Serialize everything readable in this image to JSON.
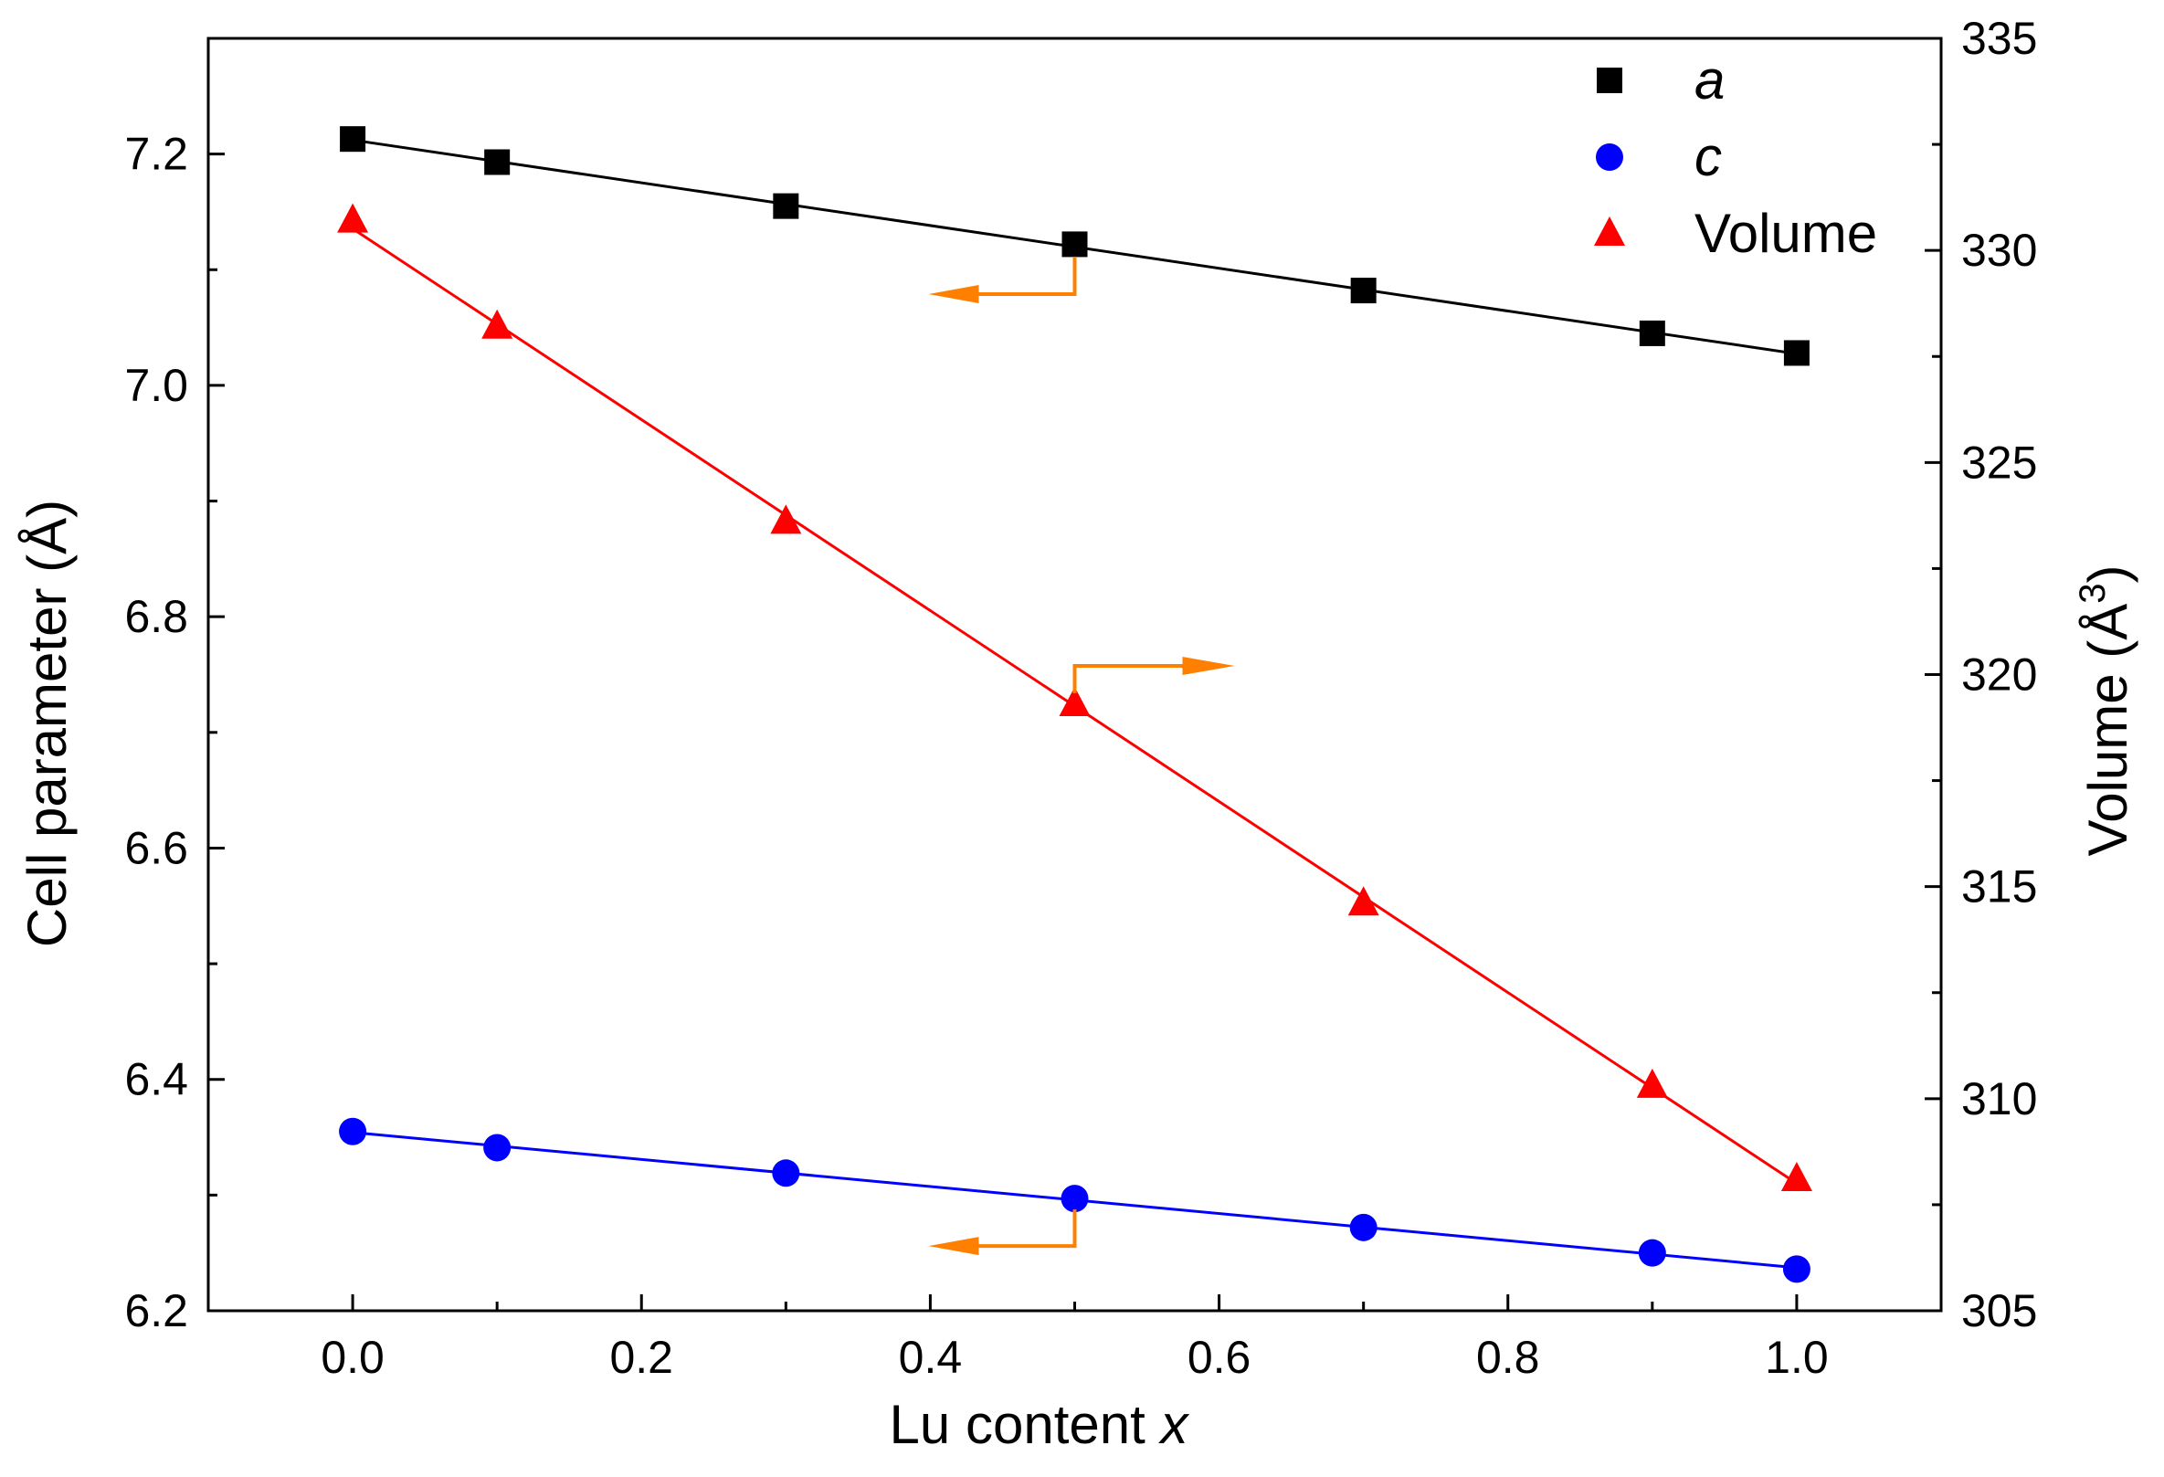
{
  "chart_data": {
    "type": "line+scatter",
    "title": "",
    "x": [
      0.0,
      0.1,
      0.3,
      0.5,
      0.7,
      0.9,
      1.0
    ],
    "xlabel": "Lu content",
    "xlabel_var": "x",
    "xlim": [
      -0.1,
      1.1
    ],
    "xticks": [
      "0.0",
      "0.2",
      "0.4",
      "0.6",
      "0.8",
      "1.0"
    ],
    "ylabel_left": "Cell parameter (Å)",
    "ylim_left": [
      6.2,
      7.3
    ],
    "yticks_left": [
      "6.2",
      "6.4",
      "6.6",
      "6.8",
      "7.0",
      "7.2"
    ],
    "ylabel_right_main": "Volume (Å",
    "ylabel_right_sup": "3",
    "ylabel_right_close": ")",
    "ylim_right": [
      305,
      335
    ],
    "yticks_right": [
      "305",
      "310",
      "315",
      "320",
      "325",
      "330",
      "335"
    ],
    "grid": false,
    "legend_position": "top-right",
    "series": [
      {
        "name": "a",
        "axis": "left",
        "marker": "square",
        "color": "#000000",
        "italic": true,
        "values": [
          7.213,
          7.193,
          7.155,
          7.122,
          7.082,
          7.045,
          7.028
        ]
      },
      {
        "name": "c",
        "axis": "left",
        "marker": "circle",
        "color": "#0000ff",
        "italic": true,
        "values": [
          6.355,
          6.341,
          6.319,
          6.297,
          6.272,
          6.25,
          6.236
        ]
      },
      {
        "name": "Volume",
        "axis": "right",
        "marker": "triangle",
        "color": "#ff0000",
        "italic": false,
        "values": [
          330.7,
          328.2,
          323.6,
          319.3,
          314.6,
          310.3,
          308.1
        ]
      }
    ],
    "annotations": [
      {
        "type": "arrow",
        "points_to": "left",
        "x": 0.5,
        "y_left": 7.12,
        "color": "#ff7f00"
      },
      {
        "type": "arrow",
        "points_to": "right",
        "x": 0.5,
        "y_right": 319.3,
        "color": "#ff7f00"
      },
      {
        "type": "arrow",
        "points_to": "left",
        "x": 0.5,
        "y_left": 6.297,
        "color": "#ff7f00"
      }
    ]
  }
}
